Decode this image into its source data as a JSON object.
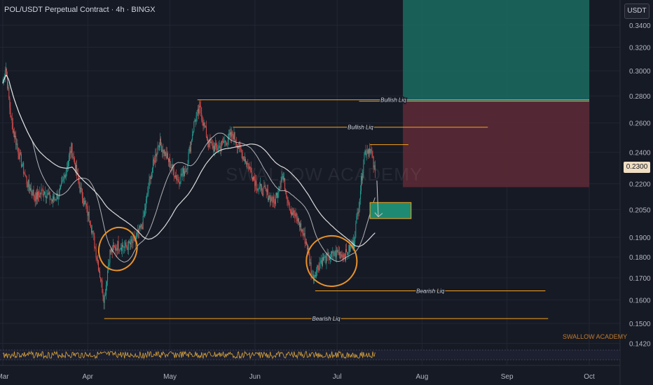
{
  "header": {
    "title": "POL/USDT Perpetual Contract · 4h · BINGX"
  },
  "watermark": "SWALLOW ACADEMY",
  "brand": "SWALLOW ACADEMY",
  "quote_unit": "USDT",
  "last_price": "0.2300",
  "colors": {
    "background": "#161a25",
    "up": "#26a69a",
    "down": "#ef5350",
    "level_line": "#f7a21b",
    "target_zone": "#1b6b62",
    "stop_zone": "#5e2a36",
    "entry_zone": "#1f8a72",
    "ma_line": "#e6e6e6",
    "annotation": "#e8922a",
    "rsi_line": "#d8a33a"
  },
  "chart_data": {
    "type": "candlestick",
    "symbol": "POL/USDT",
    "timeframe": "4h",
    "exchange": "BINGX",
    "y_scale": "log",
    "y_ticks": [
      "0.3400",
      "0.3200",
      "0.3000",
      "0.2800",
      "0.2600",
      "0.2400",
      "0.2200",
      "0.2050",
      "0.1900",
      "0.1800",
      "0.1700",
      "0.1600",
      "0.1500",
      "0.1420"
    ],
    "x_ticks": [
      "Mar",
      "Apr",
      "May",
      "Jun",
      "Jul",
      "Aug",
      "Sep",
      "Oct"
    ],
    "price_path": [
      {
        "date": "Mar 1",
        "price": 0.29
      },
      {
        "date": "Mar 2",
        "price": 0.305
      },
      {
        "date": "Mar 4",
        "price": 0.262
      },
      {
        "date": "Mar 7",
        "price": 0.238
      },
      {
        "date": "Mar 10",
        "price": 0.22
      },
      {
        "date": "Mar 13",
        "price": 0.212
      },
      {
        "date": "Mar 16",
        "price": 0.216
      },
      {
        "date": "Mar 19",
        "price": 0.21
      },
      {
        "date": "Mar 22",
        "price": 0.215
      },
      {
        "date": "Mar 26",
        "price": 0.243
      },
      {
        "date": "Mar 29",
        "price": 0.218
      },
      {
        "date": "Apr 2",
        "price": 0.198
      },
      {
        "date": "Apr 5",
        "price": 0.175
      },
      {
        "date": "Apr 7",
        "price": 0.16
      },
      {
        "date": "Apr 9",
        "price": 0.182
      },
      {
        "date": "Apr 12",
        "price": 0.186
      },
      {
        "date": "Apr 15",
        "price": 0.185
      },
      {
        "date": "Apr 18",
        "price": 0.188
      },
      {
        "date": "Apr 21",
        "price": 0.197
      },
      {
        "date": "Apr 24",
        "price": 0.226
      },
      {
        "date": "Apr 27",
        "price": 0.247
      },
      {
        "date": "Apr 30",
        "price": 0.236
      },
      {
        "date": "May 4",
        "price": 0.222
      },
      {
        "date": "May 7",
        "price": 0.23
      },
      {
        "date": "May 10",
        "price": 0.262
      },
      {
        "date": "May 12",
        "price": 0.27
      },
      {
        "date": "May 15",
        "price": 0.246
      },
      {
        "date": "May 18",
        "price": 0.242
      },
      {
        "date": "May 21",
        "price": 0.247
      },
      {
        "date": "May 24",
        "price": 0.252
      },
      {
        "date": "May 27",
        "price": 0.24
      },
      {
        "date": "May 30",
        "price": 0.23
      },
      {
        "date": "Jun 2",
        "price": 0.218
      },
      {
        "date": "Jun 5",
        "price": 0.215
      },
      {
        "date": "Jun 8",
        "price": 0.209
      },
      {
        "date": "Jun 11",
        "price": 0.225
      },
      {
        "date": "Jun 14",
        "price": 0.205
      },
      {
        "date": "Jun 17",
        "price": 0.198
      },
      {
        "date": "Jun 20",
        "price": 0.186
      },
      {
        "date": "Jun 22",
        "price": 0.17
      },
      {
        "date": "Jun 25",
        "price": 0.178
      },
      {
        "date": "Jun 28",
        "price": 0.18
      },
      {
        "date": "Jul 1",
        "price": 0.182
      },
      {
        "date": "Jul 4",
        "price": 0.181
      },
      {
        "date": "Jul 7",
        "price": 0.187
      },
      {
        "date": "Jul 9",
        "price": 0.21
      },
      {
        "date": "Jul 11",
        "price": 0.24
      },
      {
        "date": "Jul 13",
        "price": 0.243
      },
      {
        "date": "Jul 15",
        "price": 0.225
      }
    ],
    "moving_averages": [
      "MA (thin)",
      "MA (thick)"
    ],
    "annotations": [
      {
        "label": "Bullish Liq",
        "price": 0.277,
        "from": "May 11",
        "to": "Oct 1"
      },
      {
        "label": "Bullish Liq",
        "price": 0.257,
        "from": "May 24",
        "to": "Aug 25"
      },
      {
        "label": "",
        "price": 0.245,
        "from": "Jul 13",
        "to": "Jul 27"
      },
      {
        "label": "Bearish Liq",
        "price": 0.164,
        "from": "Jun 23",
        "to": "Sep 15"
      },
      {
        "label": "Bearish Liq",
        "price": 0.152,
        "from": "Apr 7",
        "to": "Sep 16"
      }
    ],
    "position": {
      "target_top": 0.375,
      "entry": 0.276,
      "stop_bottom": 0.218,
      "from": "Jul 25",
      "to": "Oct 1"
    },
    "entry_zone": {
      "top": 0.209,
      "bottom": 0.2,
      "from": "Jul 13",
      "to": "Jul 28"
    },
    "circled_regions": [
      {
        "center": "Apr 12",
        "price": 0.184
      },
      {
        "center": "Jun 29",
        "price": 0.178
      }
    ],
    "oscillator": {
      "name": "RSI",
      "range": [
        0,
        100
      ]
    }
  }
}
